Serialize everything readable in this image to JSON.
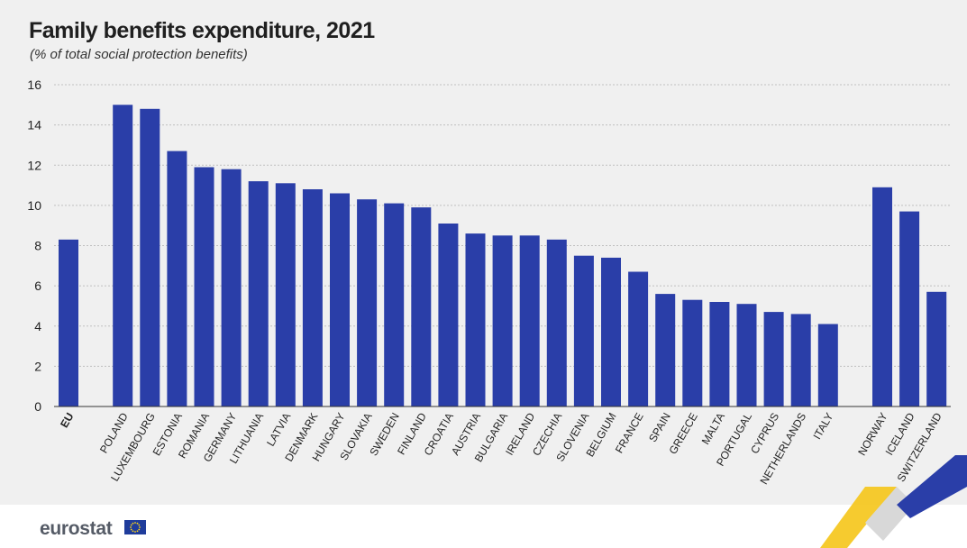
{
  "title": "Family benefits expenditure, 2021",
  "subtitle": "(% of total social protection benefits)",
  "logo": {
    "text": "eurostat"
  },
  "colors": {
    "bar": "#2a3ea8",
    "grid": "#bfbfbf",
    "background": "#f0f0f0"
  },
  "chart_data": {
    "type": "bar",
    "title": "Family benefits expenditure, 2021",
    "subtitle": "(% of total social protection benefits)",
    "ylim": [
      0,
      16
    ],
    "yticks": [
      0,
      2,
      4,
      6,
      8,
      10,
      12,
      14,
      16
    ],
    "grid": true,
    "categories": [
      "EU",
      "POLAND",
      "LUXEMBOURG",
      "ESTONIA",
      "ROMANIA",
      "GERMANY",
      "LITHUANIA",
      "LATVIA",
      "DENMARK",
      "HUNGARY",
      "SLOVAKIA",
      "SWEDEN",
      "FINLAND",
      "CROATIA",
      "AUSTRIA",
      "BULGARIA",
      "IRELAND",
      "CZECHIA",
      "SLOVENIA",
      "BELGIUM",
      "FRANCE",
      "SPAIN",
      "GREECE",
      "MALTA",
      "PORTUGAL",
      "CYPRUS",
      "NETHERLANDS",
      "ITALY",
      "NORWAY",
      "ICELAND",
      "SWITZERLAND"
    ],
    "values": [
      8.3,
      15.0,
      14.8,
      12.7,
      11.9,
      11.8,
      11.2,
      11.1,
      10.8,
      10.6,
      10.3,
      10.1,
      9.9,
      9.1,
      8.6,
      8.5,
      8.5,
      8.3,
      7.5,
      7.4,
      6.7,
      5.6,
      5.3,
      5.2,
      5.1,
      4.7,
      4.6,
      4.1,
      10.9,
      9.7,
      5.7
    ],
    "bold_categories": [
      "EU"
    ]
  }
}
